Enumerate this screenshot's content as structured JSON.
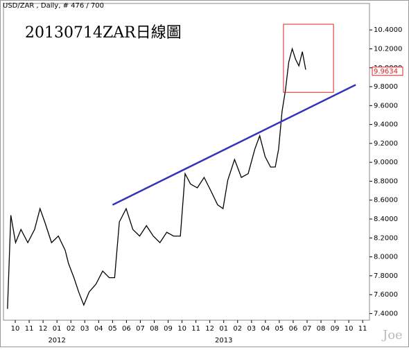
{
  "chart_data": {
    "type": "line",
    "header": "USD/ZAR , Daily, # 476 / 700",
    "title": "20130714ZAR日線圖",
    "watermark": "Joe",
    "x": [
      -0.56,
      -0.32,
      0.02,
      0.41,
      0.9,
      1.39,
      1.78,
      2.12,
      2.61,
      3.1,
      3.59,
      3.83,
      4.22,
      4.56,
      4.93,
      5.32,
      5.8,
      6.29,
      6.76,
      7.15,
      7.49,
      7.98,
      8.46,
      8.95,
      9.44,
      9.93,
      10.41,
      10.9,
      11.39,
      11.88,
      12.22,
      12.61,
      13.1,
      13.59,
      14.07,
      14.56,
      14.95,
      15.29,
      15.78,
      16.27,
      16.76,
      17.24,
      17.59,
      17.98,
      18.37,
      18.71,
      18.95,
      19.2,
      19.44,
      19.68,
      19.93,
      20.17,
      20.41,
      20.66,
      20.9
    ],
    "series": [
      {
        "name": "USD/ZAR",
        "color": "#000000",
        "values": [
          7.45,
          8.44,
          8.15,
          8.29,
          8.15,
          8.29,
          8.51,
          8.37,
          8.15,
          8.22,
          8.07,
          7.93,
          7.78,
          7.63,
          7.49,
          7.63,
          7.71,
          7.85,
          7.78,
          7.78,
          8.37,
          8.51,
          8.29,
          8.22,
          8.33,
          8.22,
          8.15,
          8.26,
          8.22,
          8.22,
          8.88,
          8.77,
          8.73,
          8.84,
          8.7,
          8.55,
          8.51,
          8.81,
          9.03,
          8.84,
          8.88,
          9.14,
          9.28,
          9.06,
          8.95,
          8.95,
          9.14,
          9.54,
          9.76,
          10.06,
          10.2,
          10.09,
          10.02,
          10.17,
          9.98
        ]
      }
    ],
    "trendline": {
      "x": [
        7,
        24.5
      ],
      "values": [
        8.55,
        9.82
      ],
      "color": "#3333bb"
    },
    "highlight_box": {
      "x": [
        19.3,
        22.9
      ],
      "values": [
        10.46,
        9.74
      ],
      "color": "#dd2222"
    },
    "last_price": 9.9634,
    "xlim": [
      -0.85,
      25.49
    ],
    "ylim": [
      7.33,
      10.68
    ],
    "xticks": [
      {
        "value": 0,
        "label": "10"
      },
      {
        "value": 1,
        "label": "11"
      },
      {
        "value": 2,
        "label": "12"
      },
      {
        "value": 3,
        "label": "01"
      },
      {
        "value": 4,
        "label": "02"
      },
      {
        "value": 5,
        "label": "03"
      },
      {
        "value": 6,
        "label": "04"
      },
      {
        "value": 7,
        "label": "05"
      },
      {
        "value": 8,
        "label": "06"
      },
      {
        "value": 9,
        "label": "07"
      },
      {
        "value": 10,
        "label": "08"
      },
      {
        "value": 11,
        "label": "09"
      },
      {
        "value": 12,
        "label": "10"
      },
      {
        "value": 13,
        "label": "11"
      },
      {
        "value": 14,
        "label": "12"
      },
      {
        "value": 15,
        "label": "01"
      },
      {
        "value": 16,
        "label": "02"
      },
      {
        "value": 17,
        "label": "03"
      },
      {
        "value": 18,
        "label": "04"
      },
      {
        "value": 19,
        "label": "05"
      },
      {
        "value": 20,
        "label": "06"
      },
      {
        "value": 21,
        "label": "07"
      },
      {
        "value": 22,
        "label": "08"
      },
      {
        "value": 23,
        "label": "09"
      },
      {
        "value": 24,
        "label": "10"
      },
      {
        "value": 25,
        "label": "11"
      }
    ],
    "year_labels": [
      {
        "value": 3,
        "label": "2012"
      },
      {
        "value": 15,
        "label": "2013"
      }
    ],
    "yticks": [
      {
        "value": 7.4,
        "label": "7.4000"
      },
      {
        "value": 7.6,
        "label": "7.6000"
      },
      {
        "value": 7.8,
        "label": "7.8000"
      },
      {
        "value": 8.0,
        "label": "8.0000"
      },
      {
        "value": 8.2,
        "label": "8.2000"
      },
      {
        "value": 8.4,
        "label": "8.4000"
      },
      {
        "value": 8.6,
        "label": "8.6000"
      },
      {
        "value": 8.8,
        "label": "8.8000"
      },
      {
        "value": 9.0,
        "label": "9.0000"
      },
      {
        "value": 9.2,
        "label": "9.2000"
      },
      {
        "value": 9.4,
        "label": "9.4000"
      },
      {
        "value": 9.6,
        "label": "9.6000"
      },
      {
        "value": 9.8,
        "label": "9.8000"
      },
      {
        "value": 10.0,
        "label": "10.0000"
      },
      {
        "value": 10.2,
        "label": "10.2000"
      },
      {
        "value": 10.4,
        "label": "10.4000"
      }
    ],
    "grid": false
  }
}
